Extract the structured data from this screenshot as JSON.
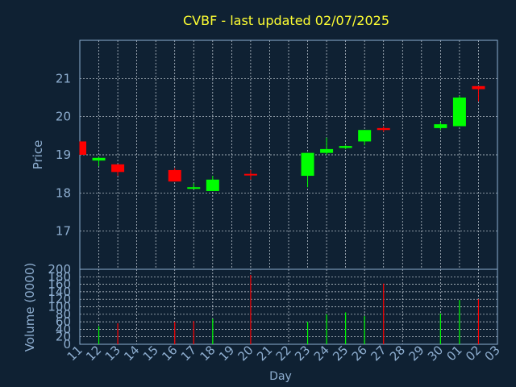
{
  "colors": {
    "background": "#0f2133",
    "title": "#ffff33",
    "axis_text": "#8eaed0",
    "grid": "#cfd8e0",
    "frame": "#8eaed0",
    "up": "#00ff00",
    "down": "#ff0000"
  },
  "chart_data": [
    {
      "type": "candlestick",
      "title": "CVBF - last updated 02/07/2025",
      "ylabel": "Price",
      "ylim": [
        16.0,
        22.0
      ],
      "yticks": [
        17,
        18,
        19,
        20,
        21
      ],
      "grid": true,
      "candles": [
        {
          "day": "11",
          "open": 19.35,
          "high": 19.35,
          "low": 19.0,
          "close": 19.0
        },
        {
          "day": "12",
          "open": 18.85,
          "high": 18.95,
          "low": 18.7,
          "close": 18.92
        },
        {
          "day": "13",
          "open": 18.75,
          "high": 18.75,
          "low": 18.45,
          "close": 18.55
        },
        {
          "day": "16",
          "open": 18.6,
          "high": 18.65,
          "low": 18.3,
          "close": 18.3
        },
        {
          "day": "17",
          "open": 18.15,
          "high": 18.25,
          "low": 18.1,
          "close": 18.15
        },
        {
          "day": "18",
          "open": 18.05,
          "high": 18.45,
          "low": 18.05,
          "close": 18.35
        },
        {
          "day": "20",
          "open": 18.5,
          "high": 18.6,
          "low": 18.35,
          "close": 18.48
        },
        {
          "day": "23",
          "open": 18.45,
          "high": 19.05,
          "low": 18.15,
          "close": 19.05
        },
        {
          "day": "24",
          "open": 19.05,
          "high": 19.45,
          "low": 19.0,
          "close": 19.15
        },
        {
          "day": "25",
          "open": 19.18,
          "high": 19.25,
          "low": 19.15,
          "close": 19.23
        },
        {
          "day": "26",
          "open": 19.35,
          "high": 19.65,
          "low": 19.25,
          "close": 19.65
        },
        {
          "day": "27",
          "open": 19.7,
          "high": 19.75,
          "low": 19.6,
          "close": 19.65
        },
        {
          "day": "30",
          "open": 19.7,
          "high": 19.85,
          "low": 19.65,
          "close": 19.8
        },
        {
          "day": "01",
          "open": 19.75,
          "high": 20.55,
          "low": 19.75,
          "close": 20.5
        },
        {
          "day": "02",
          "open": 20.8,
          "high": 20.8,
          "low": 20.4,
          "close": 20.72
        }
      ]
    },
    {
      "type": "bar",
      "ylabel": "Volume (0000)",
      "xlabel": "Day",
      "ylim": [
        0,
        200
      ],
      "yticks": [
        0,
        20,
        40,
        60,
        80,
        100,
        120,
        140,
        160,
        180,
        200
      ],
      "grid": true,
      "categories": [
        "11",
        "12",
        "13",
        "14",
        "15",
        "16",
        "17",
        "18",
        "19",
        "20",
        "21",
        "22",
        "23",
        "24",
        "25",
        "26",
        "27",
        "28",
        "29",
        "30",
        "01",
        "02",
        "03"
      ],
      "values": [
        {
          "day": "12",
          "volume": 48,
          "direction": "up"
        },
        {
          "day": "13",
          "volume": 56,
          "direction": "down"
        },
        {
          "day": "16",
          "volume": 60,
          "direction": "down"
        },
        {
          "day": "17",
          "volume": 62,
          "direction": "down"
        },
        {
          "day": "18",
          "volume": 68,
          "direction": "up"
        },
        {
          "day": "20",
          "volume": 185,
          "direction": "down"
        },
        {
          "day": "23",
          "volume": 60,
          "direction": "up"
        },
        {
          "day": "24",
          "volume": 80,
          "direction": "up"
        },
        {
          "day": "25",
          "volume": 85,
          "direction": "up"
        },
        {
          "day": "26",
          "volume": 75,
          "direction": "up"
        },
        {
          "day": "27",
          "volume": 162,
          "direction": "down"
        },
        {
          "day": "30",
          "volume": 82,
          "direction": "up"
        },
        {
          "day": "01",
          "volume": 118,
          "direction": "up"
        },
        {
          "day": "02",
          "volume": 120,
          "direction": "down"
        }
      ]
    }
  ]
}
